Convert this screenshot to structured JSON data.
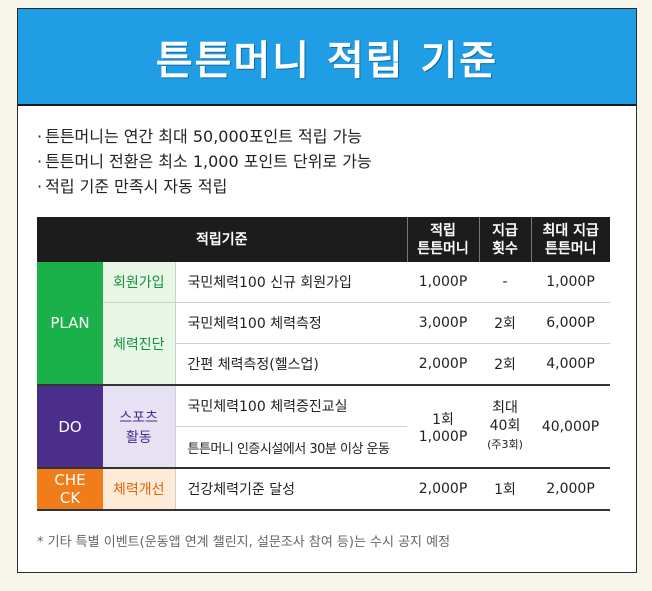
{
  "banner": {
    "title": "튼튼머니 적립 기준"
  },
  "bullets": [
    "튼튼머니는 연간 최대 50,000포인트 적립 가능",
    "튼튼머니 전환은 최소 1,000 포인트 단위로 가능",
    "적립 기준 만족시 자동 적립"
  ],
  "table": {
    "headers": {
      "criteria": "적립기준",
      "amount_l1": "적립",
      "amount_l2": "튼튼머니",
      "count_l1": "지급",
      "count_l2": "횟수",
      "max_l1": "최대 지급",
      "max_l2": "튼튼머니"
    },
    "groups": {
      "plan": "PLAN",
      "do": "DO",
      "check_l1": "CHE",
      "check_l2": "CK"
    },
    "subs": {
      "join": "회원가입",
      "diag": "체력진단",
      "sport_l1": "스포츠",
      "sport_l2": "활동",
      "improve": "체력개선"
    },
    "rows": [
      {
        "item": "국민체력100 신규 회원가입",
        "amount": "1,000P",
        "count": "-",
        "max": "1,000P"
      },
      {
        "item": "국민체력100 체력측정",
        "amount": "3,000P",
        "count": "2회",
        "max": "6,000P"
      },
      {
        "item": "간편 체력측정(헬스업)",
        "amount": "2,000P",
        "count": "2회",
        "max": "4,000P"
      },
      {
        "item": "국민체력100 체력증진교실",
        "amount_l1": "1회",
        "amount_l2": "1,000P",
        "count_l1": "최대",
        "count_l2": "40회",
        "count_l3": "(주3회)",
        "max": "40,000P"
      },
      {
        "item": "튼튼머니 인증시설에서 30분 이상 운동"
      },
      {
        "item": "건강체력기준 달성",
        "amount": "2,000P",
        "count": "1회",
        "max": "2,000P"
      }
    ]
  },
  "footnote": "* 기타 특별 이벤트(운동앱 연계 챌린지, 설문조사 참여 등)는 수시 공지 예정",
  "colors": {
    "banner": "#1f9ee5",
    "plan": "#1ab04a",
    "do": "#4b2d8c",
    "check": "#f07c1a",
    "header": "#1c1c1c"
  }
}
